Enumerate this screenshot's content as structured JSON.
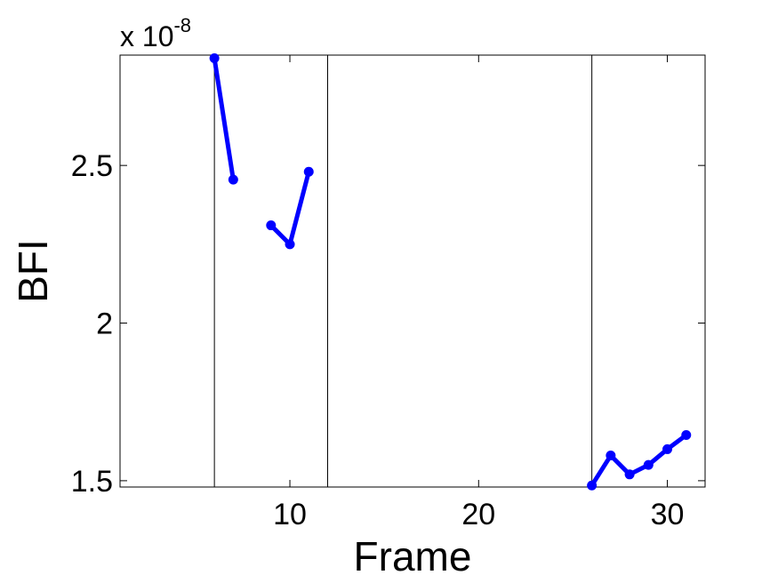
{
  "chart_data": {
    "type": "line",
    "title": "",
    "xlabel": "Frame",
    "ylabel": "BFI",
    "y_scale_label": {
      "base": "x 10",
      "exponent": "-8"
    },
    "xlim": [
      1,
      32
    ],
    "ylim": [
      1.48,
      2.85
    ],
    "grid": false,
    "legend": "none",
    "x_ticks": [
      10,
      20,
      30
    ],
    "x_tick_labels": [
      "10",
      "20",
      "30"
    ],
    "y_ticks": [
      1.5,
      2,
      2.5
    ],
    "y_tick_labels": [
      "1.5",
      "2",
      "2.5"
    ],
    "vertical_lines": [
      6,
      12,
      26
    ],
    "series": [
      {
        "color": "#0000ff",
        "segments": [
          {
            "x": [
              6,
              7
            ],
            "y": [
              2.84,
              2.455
            ]
          },
          {
            "x": [
              9,
              10,
              11
            ],
            "y": [
              2.31,
              2.25,
              2.48
            ]
          },
          {
            "x": [
              26,
              27,
              28,
              29,
              30,
              31
            ],
            "y": [
              1.485,
              1.58,
              1.52,
              1.55,
              1.6,
              1.645
            ]
          }
        ]
      }
    ]
  }
}
